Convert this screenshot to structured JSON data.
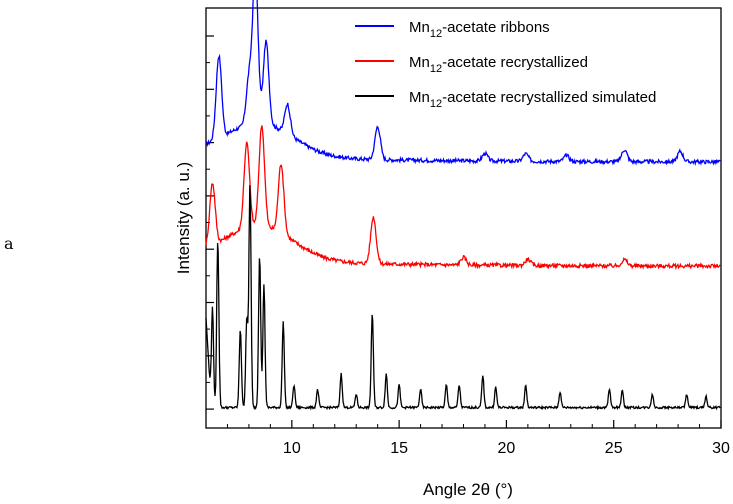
{
  "panel_label": "a",
  "chart_data": {
    "type": "line",
    "title": "",
    "xlabel": "Angle 2θ (°)",
    "ylabel": "Intensity (a. u.)",
    "xlim": [
      6,
      30
    ],
    "y_ticks_labeled": false,
    "x_ticks": [
      10,
      15,
      20,
      25,
      30
    ],
    "legend_position": "top-right",
    "series": [
      {
        "name": "Mn12-acetate ribbons",
        "legend_parts": [
          "Mn",
          "12",
          "-acetate ribbons"
        ],
        "color": "#0000ff",
        "peaks": [
          [
            6.6,
            0.55
          ],
          [
            8.0,
            0.3
          ],
          [
            8.3,
            1.0
          ],
          [
            8.8,
            0.55
          ],
          [
            9.8,
            0.2
          ],
          [
            14.0,
            0.22
          ],
          [
            19.0,
            0.05
          ],
          [
            20.9,
            0.05
          ],
          [
            22.8,
            0.04
          ],
          [
            25.5,
            0.08
          ],
          [
            28.1,
            0.07
          ]
        ],
        "baseline": 0.04
      },
      {
        "name": "Mn12-acetate recrystallized",
        "legend_parts": [
          "Mn",
          "12",
          "-acetate recrystallized"
        ],
        "color": "#ff0000",
        "peaks": [
          [
            6.3,
            0.4
          ],
          [
            7.9,
            0.55
          ],
          [
            8.6,
            0.65
          ],
          [
            9.5,
            0.45
          ],
          [
            13.8,
            0.3
          ],
          [
            18.0,
            0.05
          ],
          [
            21.0,
            0.04
          ],
          [
            25.5,
            0.04
          ]
        ],
        "baseline": 0.05
      },
      {
        "name": "Mn12-acetate recrystallized simulated",
        "legend_parts": [
          "Mn",
          "12",
          "-acetate recrystallized simulated"
        ],
        "color": "#000000",
        "peaks": [
          [
            6.3,
            0.45
          ],
          [
            6.55,
            0.75
          ],
          [
            7.6,
            0.35
          ],
          [
            7.9,
            0.4
          ],
          [
            8.05,
            1.0
          ],
          [
            8.5,
            0.68
          ],
          [
            8.7,
            0.55
          ],
          [
            9.6,
            0.38
          ],
          [
            10.1,
            0.1
          ],
          [
            11.2,
            0.08
          ],
          [
            12.3,
            0.15
          ],
          [
            13.0,
            0.06
          ],
          [
            13.75,
            0.42
          ],
          [
            14.4,
            0.15
          ],
          [
            15.0,
            0.1
          ],
          [
            16.0,
            0.08
          ],
          [
            17.2,
            0.1
          ],
          [
            17.8,
            0.1
          ],
          [
            18.9,
            0.14
          ],
          [
            19.5,
            0.09
          ],
          [
            20.9,
            0.1
          ],
          [
            22.5,
            0.07
          ],
          [
            24.8,
            0.08
          ],
          [
            25.4,
            0.08
          ],
          [
            26.8,
            0.06
          ],
          [
            28.4,
            0.06
          ],
          [
            29.3,
            0.05
          ]
        ],
        "baseline": 0.02
      }
    ]
  }
}
